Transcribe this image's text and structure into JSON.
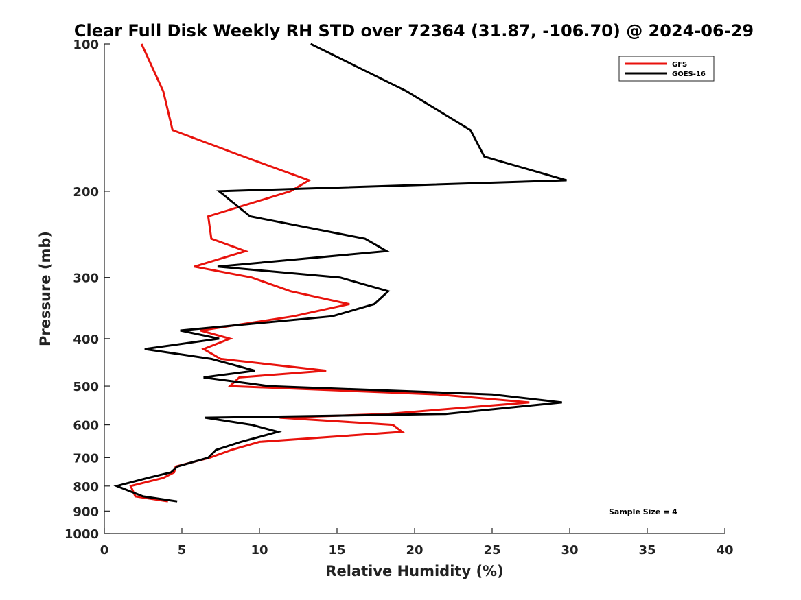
{
  "chart_data": {
    "type": "line",
    "title": "Clear Full Disk Weekly RH STD over 72364 (31.87, -106.70) @ 2024-06-29",
    "xlabel": "Relative Humidity (%)",
    "ylabel": "Pressure (mb)",
    "xlim": [
      0,
      40
    ],
    "ylim": [
      100,
      1000
    ],
    "yscale": "log",
    "yreversed": true,
    "xticks": [
      0,
      5,
      10,
      15,
      20,
      25,
      30,
      35,
      40
    ],
    "yticks": [
      100,
      200,
      300,
      400,
      500,
      600,
      700,
      800,
      900,
      1000
    ],
    "grid": false,
    "legend_position": "top-right",
    "annotation": "Sample Size = 4",
    "series": [
      {
        "name": "GFS",
        "color": "#e8120c",
        "points": [
          [
            2.4,
            100
          ],
          [
            3.8,
            125
          ],
          [
            4.4,
            150
          ],
          [
            9.0,
            170
          ],
          [
            13.2,
            190
          ],
          [
            12.0,
            200
          ],
          [
            6.7,
            225
          ],
          [
            6.9,
            250
          ],
          [
            9.1,
            265
          ],
          [
            5.8,
            285
          ],
          [
            9.5,
            300
          ],
          [
            12.0,
            320
          ],
          [
            15.8,
            340
          ],
          [
            12.2,
            360
          ],
          [
            6.2,
            385
          ],
          [
            8.1,
            400
          ],
          [
            6.4,
            420
          ],
          [
            7.5,
            440
          ],
          [
            14.3,
            465
          ],
          [
            8.7,
            480
          ],
          [
            8.1,
            500
          ],
          [
            21.5,
            520
          ],
          [
            27.4,
            540
          ],
          [
            18.2,
            570
          ],
          [
            11.3,
            580
          ],
          [
            18.6,
            600
          ],
          [
            19.2,
            620
          ],
          [
            10.0,
            650
          ],
          [
            8.2,
            675
          ],
          [
            6.8,
            700
          ],
          [
            4.6,
            730
          ],
          [
            4.5,
            750
          ],
          [
            3.8,
            770
          ],
          [
            1.7,
            800
          ],
          [
            2.0,
            840
          ],
          [
            4.1,
            860
          ]
        ]
      },
      {
        "name": "GOES-16",
        "color": "#000000",
        "points": [
          [
            13.3,
            100
          ],
          [
            19.5,
            125
          ],
          [
            23.6,
            150
          ],
          [
            24.5,
            170
          ],
          [
            29.8,
            190
          ],
          [
            7.4,
            200
          ],
          [
            9.4,
            225
          ],
          [
            16.8,
            250
          ],
          [
            18.2,
            265
          ],
          [
            7.3,
            285
          ],
          [
            15.2,
            300
          ],
          [
            18.3,
            320
          ],
          [
            17.4,
            340
          ],
          [
            14.7,
            360
          ],
          [
            4.9,
            385
          ],
          [
            7.4,
            400
          ],
          [
            2.6,
            420
          ],
          [
            6.9,
            440
          ],
          [
            9.7,
            465
          ],
          [
            6.4,
            480
          ],
          [
            10.6,
            500
          ],
          [
            25.0,
            520
          ],
          [
            29.5,
            540
          ],
          [
            22.0,
            570
          ],
          [
            6.5,
            580
          ],
          [
            9.5,
            600
          ],
          [
            11.2,
            620
          ],
          [
            8.8,
            650
          ],
          [
            7.2,
            675
          ],
          [
            6.7,
            700
          ],
          [
            4.7,
            730
          ],
          [
            4.3,
            750
          ],
          [
            2.8,
            770
          ],
          [
            0.8,
            800
          ],
          [
            2.5,
            840
          ],
          [
            4.7,
            860
          ]
        ]
      }
    ]
  }
}
